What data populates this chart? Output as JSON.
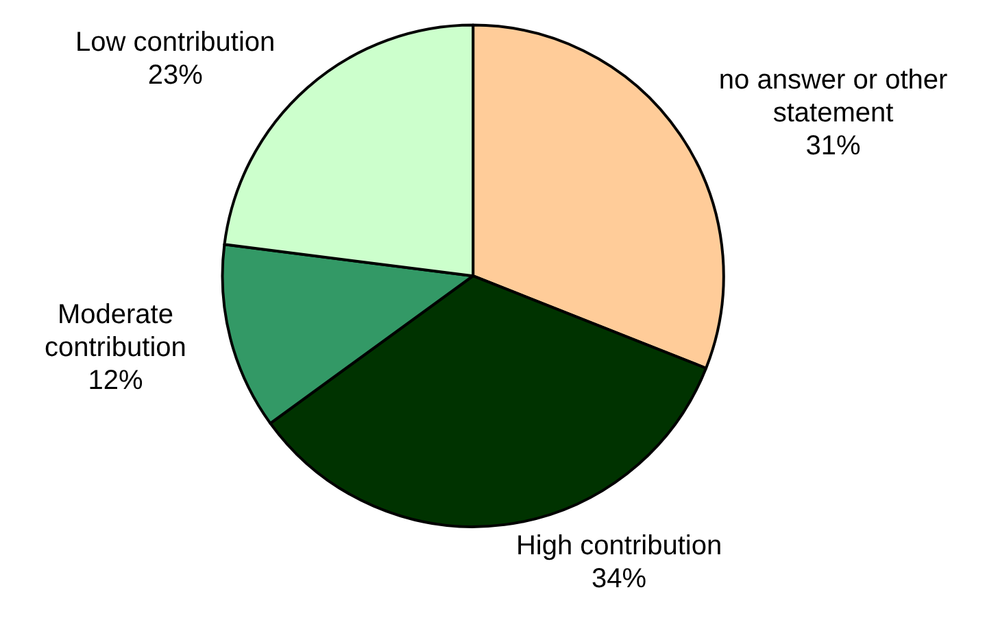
{
  "chart_data": {
    "type": "pie",
    "categories": [
      "no answer or other statement",
      "High contribution",
      "Moderate contribution",
      "Low contribution"
    ],
    "values": [
      31,
      34,
      12,
      23
    ],
    "value_labels": [
      "31%",
      "34%",
      "12%",
      "23%"
    ],
    "colors": [
      "#ffcc99",
      "#003300",
      "#339966",
      "#ccffcc"
    ],
    "legend": false
  }
}
